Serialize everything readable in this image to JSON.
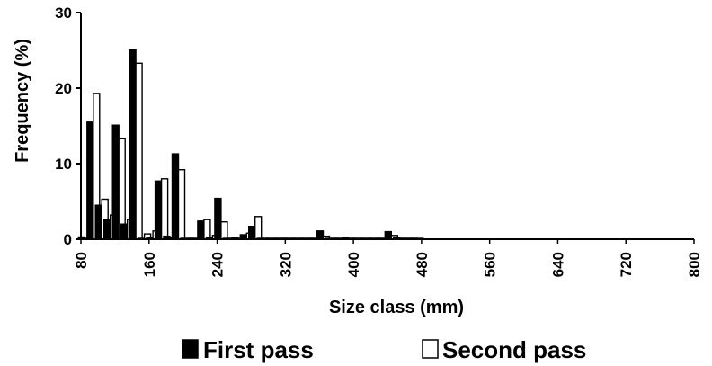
{
  "chart_data": {
    "type": "bar",
    "xlabel": "Size class (mm)",
    "ylabel": "Frequency (%)",
    "ylim": [
      0,
      30
    ],
    "yticks": [
      "0",
      "10",
      "20",
      "30"
    ],
    "xticks": [
      "80",
      "160",
      "240",
      "320",
      "400",
      "480",
      "560",
      "640",
      "720",
      "800"
    ],
    "categories": [
      80,
      90,
      100,
      110,
      120,
      130,
      140,
      150,
      160,
      170,
      180,
      190,
      200,
      210,
      220,
      230,
      240,
      250,
      260,
      270,
      280,
      290,
      300,
      310,
      320,
      330,
      340,
      350,
      360,
      370,
      380,
      390,
      400,
      410,
      420,
      430,
      440,
      450,
      460,
      470,
      480,
      490,
      500,
      510,
      520,
      530,
      540,
      550,
      560,
      570,
      580,
      590,
      600,
      610,
      620,
      630,
      640,
      650,
      660,
      670,
      680,
      690,
      700,
      710,
      720,
      730,
      740,
      750,
      760,
      770,
      780,
      790,
      800
    ],
    "series": [
      {
        "name": "First pass",
        "color": "#000000",
        "values": [
          0.3,
          15.5,
          4.5,
          2.6,
          15.1,
          2.0,
          25.1,
          0.1,
          0.2,
          7.7,
          0.4,
          11.3,
          0.1,
          0.1,
          2.4,
          0.2,
          5.4,
          0.1,
          0.2,
          0.6,
          1.7,
          0.1,
          0.1,
          0.1,
          0.1,
          0.1,
          0.1,
          0.1,
          1.1,
          0.1,
          0.1,
          0.2,
          0.1,
          0.1,
          0.1,
          0.1,
          1.0,
          0.2,
          0.1,
          0.1,
          0,
          0,
          0,
          0,
          0,
          0,
          0,
          0,
          0,
          0,
          0,
          0,
          0,
          0,
          0,
          0,
          0,
          0,
          0,
          0,
          0,
          0,
          0,
          0,
          0,
          0,
          0,
          0,
          0,
          0,
          0,
          0,
          0
        ]
      },
      {
        "name": "Second pass",
        "color": "#ffffff",
        "values": [
          0.1,
          19.3,
          5.3,
          3.2,
          13.3,
          2.6,
          23.3,
          0.7,
          1.1,
          8.0,
          0.2,
          9.2,
          0.1,
          0.1,
          2.6,
          0.5,
          2.3,
          0.1,
          0.1,
          0.8,
          3.0,
          0.1,
          0.1,
          0.1,
          0.1,
          0.1,
          0.1,
          0.1,
          0.4,
          0.1,
          0.1,
          0.1,
          0.1,
          0.1,
          0.1,
          0.1,
          0.5,
          0.1,
          0.1,
          0.1,
          0,
          0,
          0,
          0,
          0,
          0,
          0,
          0,
          0,
          0,
          0,
          0,
          0,
          0,
          0,
          0,
          0,
          0,
          0,
          0,
          0,
          0,
          0,
          0,
          0,
          0,
          0,
          0,
          0,
          0,
          0,
          0,
          0
        ]
      }
    ],
    "legend": [
      {
        "label": "First pass",
        "color": "#000000"
      },
      {
        "label": "Second pass",
        "color": "#ffffff"
      }
    ],
    "legend_position": "bottom",
    "grid": false
  }
}
